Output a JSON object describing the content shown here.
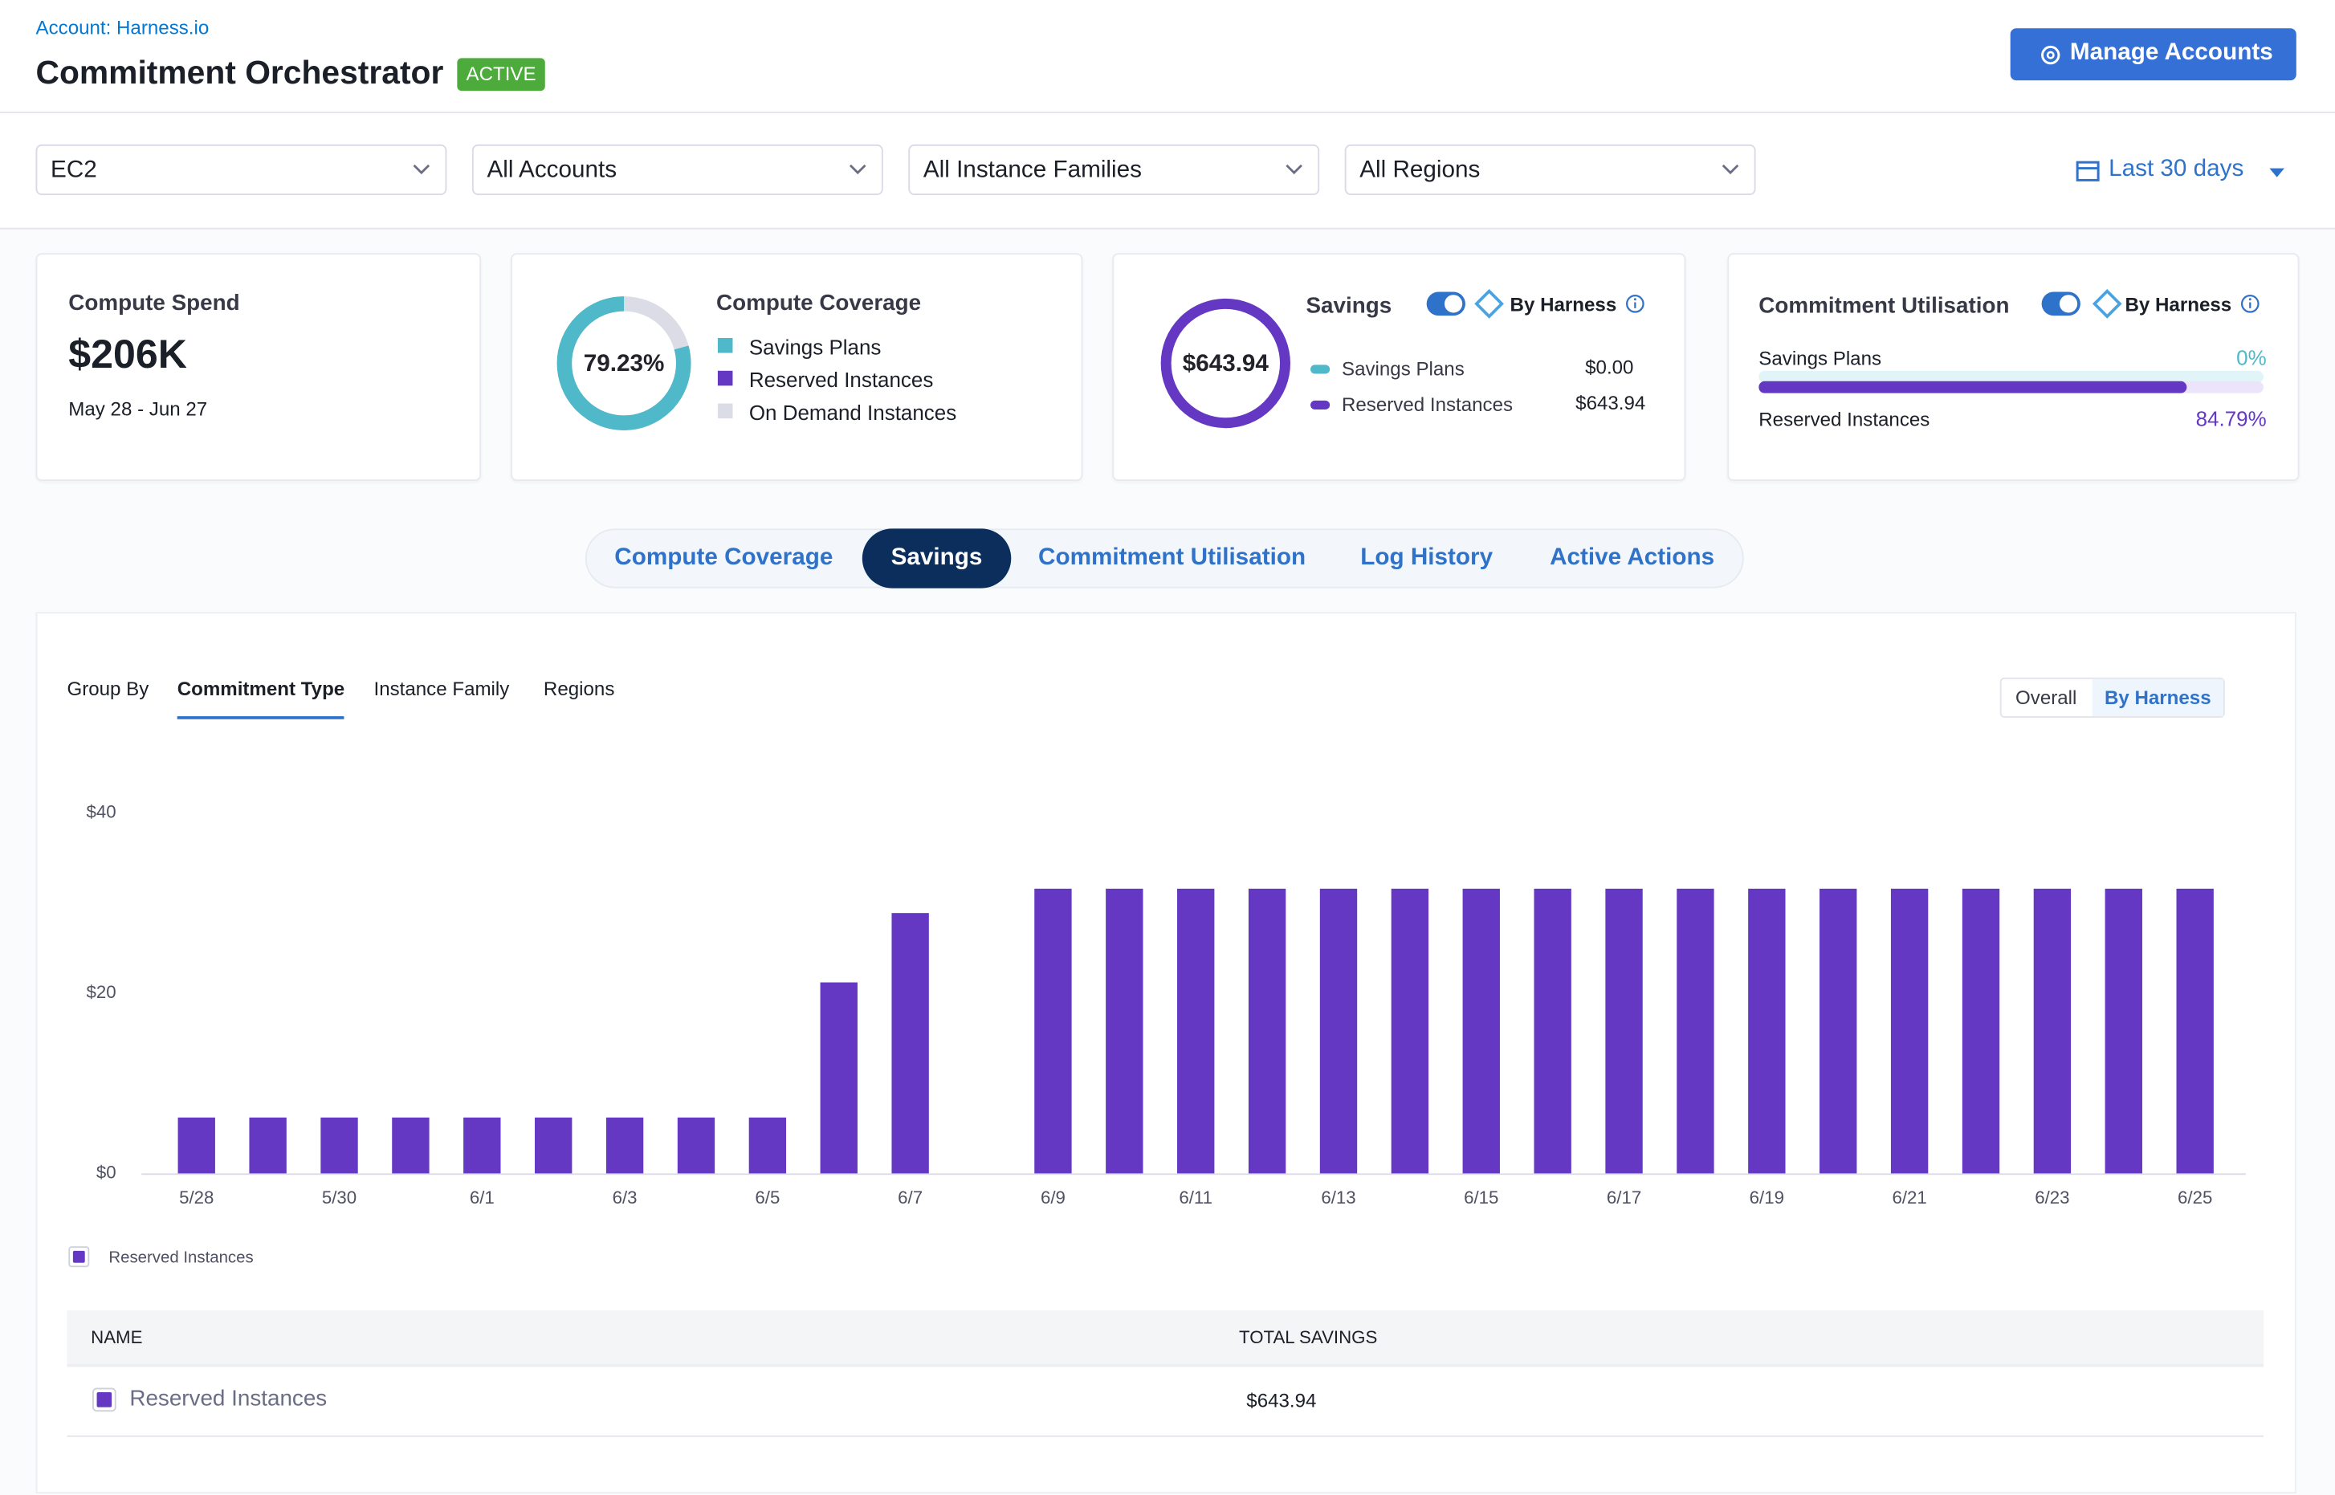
{
  "header": {
    "account": "Account: Harness.io",
    "title": "Commitment Orchestrator",
    "status": "ACTIVE",
    "button": "Manage Accounts"
  },
  "filters": [
    "EC2",
    "All Accounts",
    "All Instance Families",
    "All Regions"
  ],
  "date_range": "Last 30 days",
  "cards": {
    "compute_spend": {
      "title": "Compute Spend",
      "value": "$206K",
      "period": "May 28 - Jun 27"
    },
    "coverage": {
      "title": "Compute Coverage",
      "percent": {
        "value": 79.23,
        "label": "79.23%"
      },
      "legend": [
        "Savings Plans",
        "Reserved Instances",
        "On Demand Instances"
      ]
    },
    "savings": {
      "title": "Savings",
      "toggle": "By Harness",
      "total": "$643.94",
      "rows": [
        [
          "Savings Plans",
          "$0.00"
        ],
        [
          "Reserved Instances",
          "$643.94"
        ]
      ]
    },
    "utilisation": {
      "title": "Commitment Utilisation",
      "toggle": "By Harness",
      "rows": [
        {
          "name": "Savings Plans",
          "value": 0,
          "label": "0%"
        },
        {
          "name": "Reserved Instances",
          "value": 84.79,
          "label": "84.79%"
        }
      ]
    }
  },
  "tabs": [
    "Compute Coverage",
    "Savings",
    "Commitment Utilisation",
    "Log History",
    "Active Actions"
  ],
  "group_by": {
    "label": "Group By",
    "options": [
      "Commitment Type",
      "Instance Family",
      "Regions"
    ]
  },
  "view_toggle": [
    "Overall",
    "By Harness"
  ],
  "chart_data": {
    "type": "bar",
    "categories": [
      "5/28",
      null,
      "5/30",
      null,
      "6/1",
      null,
      "6/3",
      null,
      "6/5",
      null,
      "6/7",
      null,
      "6/9",
      null,
      "6/11",
      null,
      "6/13",
      null,
      "6/15",
      null,
      "6/17",
      null,
      "6/19",
      null,
      "6/21",
      null,
      "6/23",
      null,
      "6/25"
    ],
    "series": [
      {
        "name": "Reserved Instances",
        "color": "#6438c3",
        "values": [
          6.2,
          6.2,
          6.2,
          6.2,
          6.2,
          6.2,
          6.2,
          6.2,
          6.2,
          21.2,
          28.9,
          0,
          31.6,
          31.6,
          31.6,
          31.6,
          31.6,
          31.6,
          31.6,
          31.6,
          31.6,
          31.6,
          31.6,
          31.6,
          31.6,
          31.6,
          31.6,
          31.6,
          31.6
        ]
      }
    ],
    "ylim": [
      0,
      40
    ],
    "yticks": [
      {
        "value": 0,
        "label": "$0"
      },
      {
        "value": 20,
        "label": "$20"
      },
      {
        "value": 40,
        "label": "$40"
      }
    ],
    "grid": false
  },
  "table": {
    "columns": [
      "NAME",
      "TOTAL SAVINGS"
    ],
    "rows": [
      [
        "Reserved Instances",
        "$643.94"
      ]
    ]
  }
}
